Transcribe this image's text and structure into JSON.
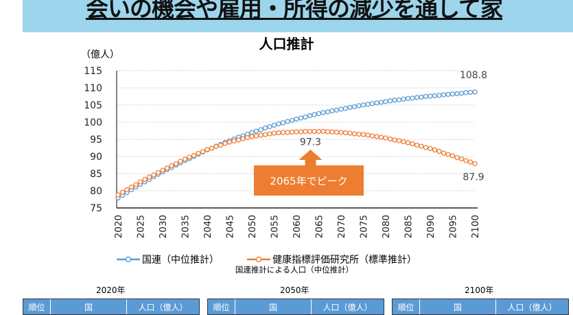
{
  "banner": {
    "title": "会いの機会や雇用・所得の減少を通して家"
  },
  "chart_data": {
    "type": "line",
    "title": "人口推計",
    "ylabel": "（億人）",
    "xlabel": "",
    "ylim": [
      75,
      115
    ],
    "yticks": [
      75,
      80,
      85,
      90,
      95,
      100,
      105,
      110,
      115
    ],
    "xlim": [
      2020,
      2100
    ],
    "xticks": [
      2020,
      2025,
      2030,
      2035,
      2040,
      2045,
      2050,
      2055,
      2060,
      2065,
      2070,
      2075,
      2080,
      2085,
      2090,
      2095,
      2100
    ],
    "grid": true,
    "legend_position": "bottom",
    "x_start": 2020,
    "x_step": 1,
    "series": [
      {
        "name": "国連（中位推計）",
        "color": "#5b9bd5",
        "end_label": "108.8",
        "values": [
          77.9,
          78.7,
          79.5,
          80.3,
          81.1,
          81.9,
          82.6,
          83.3,
          84.1,
          84.8,
          85.5,
          86.2,
          86.8,
          87.5,
          88.1,
          88.8,
          89.4,
          90.0,
          90.7,
          91.3,
          91.9,
          92.4,
          93.0,
          93.5,
          94.1,
          94.6,
          95.1,
          95.6,
          96.0,
          96.5,
          97.0,
          97.4,
          97.8,
          98.3,
          98.7,
          99.1,
          99.5,
          99.8,
          100.2,
          100.5,
          100.9,
          101.2,
          101.5,
          101.9,
          102.2,
          102.5,
          102.8,
          103.0,
          103.3,
          103.5,
          103.8,
          104.0,
          104.3,
          104.5,
          104.8,
          105.0,
          105.2,
          105.4,
          105.6,
          105.8,
          106.0,
          106.2,
          106.4,
          106.5,
          106.7,
          106.9,
          107.0,
          107.2,
          107.3,
          107.5,
          107.6,
          107.7,
          107.8,
          108.0,
          108.1,
          108.2,
          108.3,
          108.4,
          108.6,
          108.7,
          108.8
        ]
      },
      {
        "name": "健康指標評価研究所（標準推計）",
        "color": "#ed7d31",
        "end_label": "87.9",
        "peak_label": "97.3",
        "values": [
          78.8,
          79.6,
          80.3,
          81.1,
          81.8,
          82.6,
          83.3,
          84.0,
          84.6,
          85.3,
          86.0,
          86.6,
          87.3,
          87.9,
          88.6,
          89.2,
          89.8,
          90.3,
          90.9,
          91.4,
          92.0,
          92.4,
          92.9,
          93.3,
          93.8,
          94.2,
          94.5,
          94.8,
          95.2,
          95.5,
          95.8,
          96.0,
          96.2,
          96.4,
          96.6,
          96.8,
          96.9,
          97.0,
          97.0,
          97.1,
          97.2,
          97.2,
          97.3,
          97.3,
          97.3,
          97.3,
          97.3,
          97.2,
          97.2,
          97.1,
          97.0,
          96.9,
          96.8,
          96.6,
          96.5,
          96.4,
          96.2,
          96.0,
          95.8,
          95.6,
          95.4,
          95.1,
          94.8,
          94.6,
          94.3,
          94.0,
          93.7,
          93.3,
          93.0,
          92.6,
          92.3,
          91.9,
          91.5,
          91.0,
          90.6,
          90.2,
          89.7,
          89.3,
          88.8,
          88.4,
          87.9
        ]
      }
    ],
    "annotation": {
      "text": "2065年でピーク",
      "color": "#ed7d31",
      "x": 2065,
      "y": 97.3
    }
  },
  "subtitle": "国連推計による人口（中位推計）",
  "tables": [
    {
      "year": "2020年",
      "headers": [
        "順位",
        "国",
        "人口（億人）"
      ]
    },
    {
      "year": "2050年",
      "headers": [
        "順位",
        "国",
        "人口（億人）"
      ]
    },
    {
      "year": "2100年",
      "headers": [
        "順位",
        "国",
        "人口（億人）"
      ]
    }
  ]
}
